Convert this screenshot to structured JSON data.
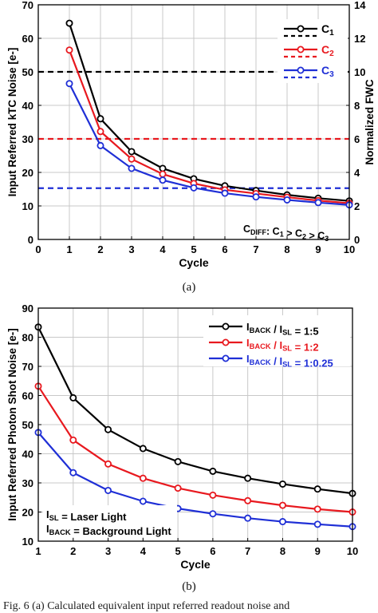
{
  "chart_data": [
    {
      "type": "line",
      "title": "",
      "xlabel": "Cycle",
      "ylabel": "Input Referred kTC Noise [e-]",
      "y2label": "Normalized FWC",
      "xlim": [
        0,
        10
      ],
      "ylim": [
        0,
        70
      ],
      "y2lim": [
        0,
        14
      ],
      "xticks": [
        "0",
        "1",
        "2",
        "3",
        "4",
        "5",
        "6",
        "7",
        "8",
        "9",
        "10"
      ],
      "yticks": [
        "0",
        "10",
        "20",
        "30",
        "40",
        "50",
        "60",
        "70"
      ],
      "y2ticks": [
        "0",
        "2",
        "4",
        "6",
        "8",
        "10",
        "12",
        "14"
      ],
      "grid": true,
      "legend_position": "top-right",
      "x": [
        1,
        2,
        3,
        4,
        5,
        6,
        7,
        8,
        9,
        10
      ],
      "series": [
        {
          "name": "C1",
          "color": "#000000",
          "values": [
            64.5,
            36,
            26.2,
            21.2,
            18.1,
            16,
            14.6,
            13.3,
            12.3,
            11.5
          ],
          "hline": 50
        },
        {
          "name": "C2",
          "color": "#e8191f",
          "values": [
            56.5,
            32.2,
            24,
            19.5,
            16.7,
            14.8,
            13.7,
            12.6,
            11.6,
            10.8
          ],
          "hline": 30
        },
        {
          "name": "C3",
          "color": "#1f2fd6",
          "values": [
            46.5,
            28,
            21.2,
            17.7,
            15.4,
            13.8,
            12.7,
            11.8,
            11,
            10.3
          ],
          "hline": 15.3
        }
      ],
      "legend_labels": [
        {
          "main": "C",
          "sub": "1"
        },
        {
          "main": "C",
          "sub": "2"
        },
        {
          "main": "C",
          "sub": "3"
        }
      ],
      "annotation": {
        "parts": [
          {
            "main": "C",
            "sub": "DIFF"
          },
          {
            "main": ": C",
            "sub": "1"
          },
          {
            "main": " > C",
            "sub": "2"
          },
          {
            "main": " > C",
            "sub": "3"
          }
        ]
      }
    },
    {
      "type": "line",
      "title": "",
      "xlabel": "Cycle",
      "ylabel": "Input Referred Photon Shot Noise [e-]",
      "xlim": [
        1,
        10
      ],
      "ylim": [
        10,
        90
      ],
      "xticks": [
        "1",
        "2",
        "3",
        "4",
        "5",
        "6",
        "7",
        "8",
        "9",
        "10"
      ],
      "yticks": [
        "10",
        "20",
        "30",
        "40",
        "50",
        "60",
        "70",
        "80",
        "90"
      ],
      "grid": true,
      "legend_position": "top-right",
      "x": [
        1,
        2,
        3,
        4,
        5,
        6,
        7,
        8,
        9,
        10
      ],
      "series": [
        {
          "name": "IBACK / ISL = 1:5",
          "color": "#000000",
          "values": [
            83.5,
            59.2,
            48.3,
            41.8,
            37.3,
            34,
            31.6,
            29.6,
            27.9,
            26.4
          ]
        },
        {
          "name": "IBACK / ISL = 1:2",
          "color": "#e8191f",
          "values": [
            63.2,
            44.7,
            36.5,
            31.6,
            28.2,
            25.8,
            23.9,
            22.3,
            21,
            20
          ]
        },
        {
          "name": "IBACK / ISL = 1:0.25",
          "color": "#1f2fd6",
          "values": [
            47.3,
            33.5,
            27.4,
            23.7,
            21.2,
            19.4,
            17.9,
            16.7,
            15.8,
            15
          ]
        }
      ],
      "legend_labels": [
        [
          {
            "main": "I",
            "sub": "BACK"
          },
          {
            "main": " / I",
            "sub": "SL"
          },
          {
            "main": " = 1:5",
            "sub": ""
          }
        ],
        [
          {
            "main": "I",
            "sub": "BACK"
          },
          {
            "main": " / I",
            "sub": "SL"
          },
          {
            "main": " = 1:2",
            "sub": ""
          }
        ],
        [
          {
            "main": "I",
            "sub": "BACK"
          },
          {
            "main": " / I",
            "sub": "SL"
          },
          {
            "main": " = 1:0.25",
            "sub": ""
          }
        ]
      ],
      "annotation": {
        "lines": [
          [
            {
              "main": "I",
              "sub": "SL"
            },
            {
              "main": " = Laser Light",
              "sub": ""
            }
          ],
          [
            {
              "main": "I",
              "sub": "BACK"
            },
            {
              "main": " = Background Light",
              "sub": ""
            }
          ]
        ]
      }
    }
  ],
  "captions": {
    "a": "(a)",
    "b": "(b)",
    "figure": "Fig. 6 (a) Calculated equivalent input referred readout noise and"
  }
}
